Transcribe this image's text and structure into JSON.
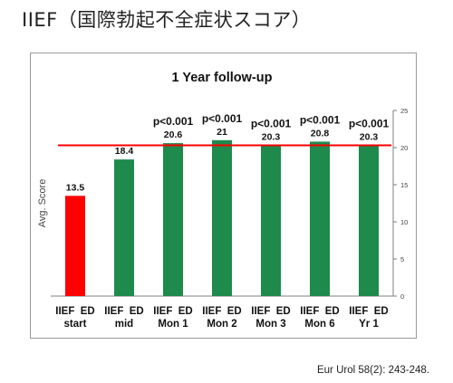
{
  "page": {
    "heading": "IIEF（国際勃起不全症状スコア）",
    "citation": "Eur Urol 58(2): 243-248."
  },
  "colors": {
    "bar_red": "#ff0000",
    "bar_green": "#1e8a4c",
    "reference_line": "#ff0000",
    "axis": "#7f7f7f"
  },
  "chart_data": {
    "type": "bar",
    "title": "1 Year follow-up",
    "xlabel": "",
    "ylabel": "Avg. Score",
    "ylim": [
      0,
      25
    ],
    "yticks": [
      0,
      5,
      10,
      15,
      20,
      25
    ],
    "grid": false,
    "categories": [
      [
        "IIEF  ED",
        "start"
      ],
      [
        "IIEF  ED",
        "mid"
      ],
      [
        "IIEF  ED",
        "Mon 1"
      ],
      [
        "IIEF  ED",
        "Mon 2"
      ],
      [
        "IIEF  ED",
        "Mon 3"
      ],
      [
        "IIEF  ED",
        "Mon 6"
      ],
      [
        "IIEF  ED",
        "Yr 1"
      ]
    ],
    "values": [
      13.5,
      18.4,
      20.6,
      21,
      20.3,
      20.8,
      20.3
    ],
    "value_labels": [
      "13.5",
      "18.4",
      "20.6",
      "21",
      "20.3",
      "20.8",
      "20.3"
    ],
    "bar_colors": [
      "#ff0000",
      "#1e8a4c",
      "#1e8a4c",
      "#1e8a4c",
      "#1e8a4c",
      "#1e8a4c",
      "#1e8a4c"
    ],
    "significance": [
      "",
      "",
      "p<0.001",
      "p<0.001",
      "p<0.001",
      "p<0.001",
      "p<0.001"
    ],
    "reference_line": 20.3
  }
}
